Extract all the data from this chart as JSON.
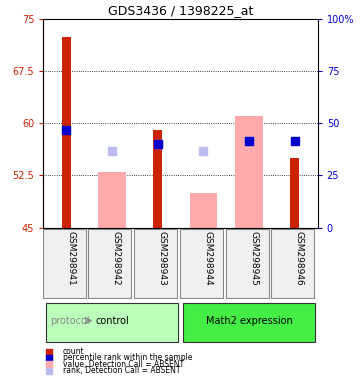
{
  "title": "GDS3436 / 1398225_at",
  "samples": [
    "GSM298941",
    "GSM298942",
    "GSM298943",
    "GSM298944",
    "GSM298945",
    "GSM298946"
  ],
  "groups": [
    "control",
    "control",
    "control",
    "Math2 expression",
    "Math2 expression",
    "Math2 expression"
  ],
  "group_labels": [
    "control",
    "Math2 expression"
  ],
  "group_colors": [
    "#aaffaa",
    "#33dd33"
  ],
  "ylim_left": [
    45,
    75
  ],
  "ylim_right": [
    0,
    100
  ],
  "yticks_left": [
    45,
    52.5,
    60,
    67.5,
    75
  ],
  "yticks_right": [
    0,
    25,
    50,
    75,
    100
  ],
  "red_bars": [
    72.5,
    null,
    59.0,
    null,
    null,
    55.0
  ],
  "pink_bars": [
    null,
    53.0,
    null,
    50.0,
    61.0,
    null
  ],
  "blue_squares": [
    59.0,
    null,
    57.0,
    null,
    57.5,
    57.5
  ],
  "light_blue_squares": [
    null,
    56.0,
    57.0,
    56.0,
    57.5,
    null
  ],
  "bar_width": 0.4,
  "square_size": 40,
  "left_axis_color": "#cc2200",
  "right_axis_color": "#0000cc",
  "grid_color": "#000000",
  "bg_color": "#f0f0f0",
  "plot_bg": "#ffffff",
  "legend_items": [
    {
      "color": "#cc2200",
      "marker": "s",
      "label": "count"
    },
    {
      "color": "#0000cc",
      "marker": "s",
      "label": "percentile rank within the sample"
    },
    {
      "color": "#ffaaaa",
      "marker": "s",
      "label": "value, Detection Call = ABSENT"
    },
    {
      "color": "#bbbbee",
      "marker": "s",
      "label": "rank, Detection Call = ABSENT"
    }
  ]
}
